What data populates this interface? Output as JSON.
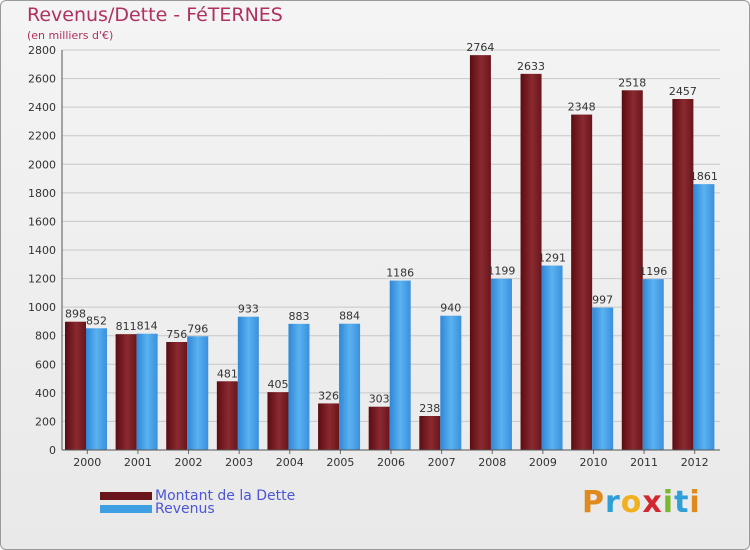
{
  "title": "Revenus/Dette - FéTERNES",
  "subtitle": "(en milliers d'€)",
  "legend": {
    "debt_label": "Montant de la Dette",
    "revenue_label": "Revenus"
  },
  "logo": {
    "letters": [
      "P",
      "r",
      "o",
      "x",
      "i",
      "t",
      "i"
    ]
  },
  "colors": {
    "debt": "#7a1c22",
    "revenue": "#3f9fe3",
    "title": "#b03060",
    "legend_text": "#4b55d6"
  },
  "chart_data": {
    "type": "bar",
    "categories": [
      "2000",
      "2001",
      "2002",
      "2003",
      "2004",
      "2005",
      "2006",
      "2007",
      "2008",
      "2009",
      "2010",
      "2011",
      "2012"
    ],
    "series": [
      {
        "name": "Montant de la Dette",
        "values": [
          898,
          811,
          756,
          481,
          405,
          326,
          303,
          238,
          2764,
          2633,
          2348,
          2518,
          2457
        ]
      },
      {
        "name": "Revenus",
        "values": [
          852,
          814,
          796,
          933,
          883,
          884,
          1186,
          940,
          1199,
          1291,
          997,
          1196,
          1861
        ]
      }
    ],
    "ylim": [
      0,
      2800
    ],
    "yticks": [
      0,
      200,
      400,
      600,
      800,
      1000,
      1200,
      1400,
      1600,
      1800,
      2000,
      2200,
      2400,
      2600,
      2800
    ],
    "grid": true,
    "legend_position": "bottom-left"
  }
}
